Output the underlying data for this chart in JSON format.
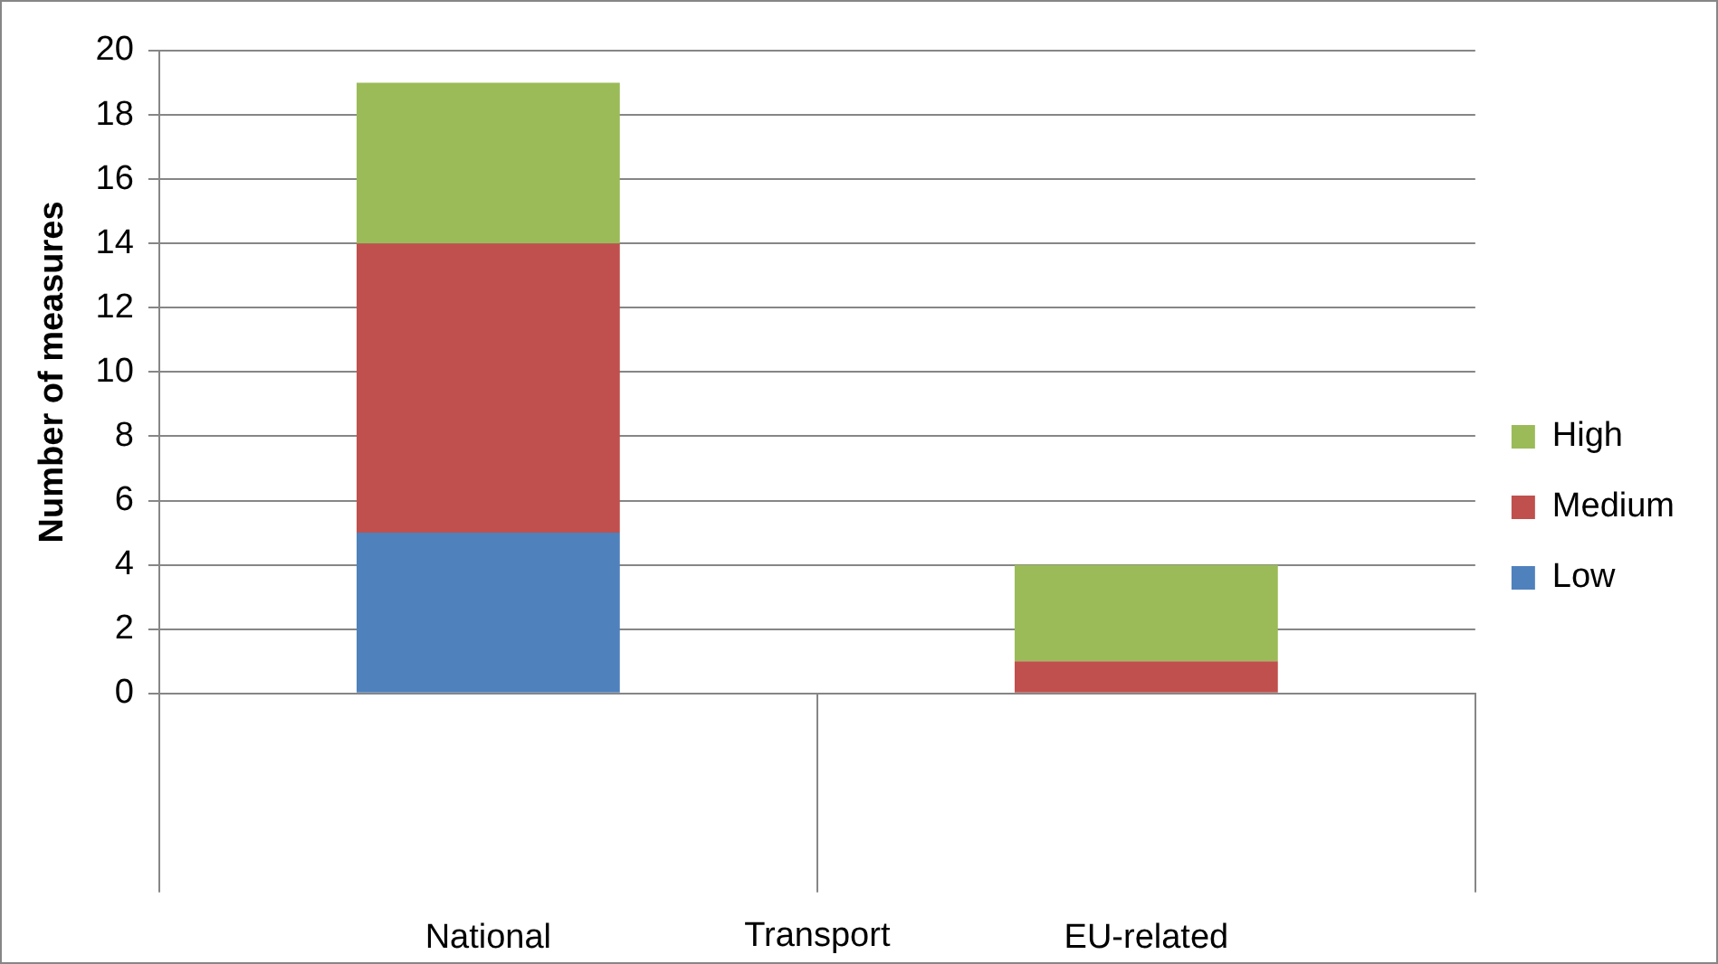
{
  "chart_data": {
    "type": "bar",
    "stacked": true,
    "categories": [
      "National",
      "EU-related"
    ],
    "series": [
      {
        "name": "Low",
        "color": "#4f81bd",
        "values": [
          5,
          0
        ]
      },
      {
        "name": "Medium",
        "color": "#c0504d",
        "values": [
          9,
          1
        ]
      },
      {
        "name": "High",
        "color": "#9bbb59",
        "values": [
          5,
          3
        ]
      }
    ],
    "ylabel": "Number of measures",
    "xlabel": "Transport",
    "ylim": [
      0,
      20
    ],
    "yticks": [
      0,
      2,
      4,
      6,
      8,
      10,
      12,
      14,
      16,
      18,
      20
    ],
    "grid": "y",
    "legend": "right"
  }
}
